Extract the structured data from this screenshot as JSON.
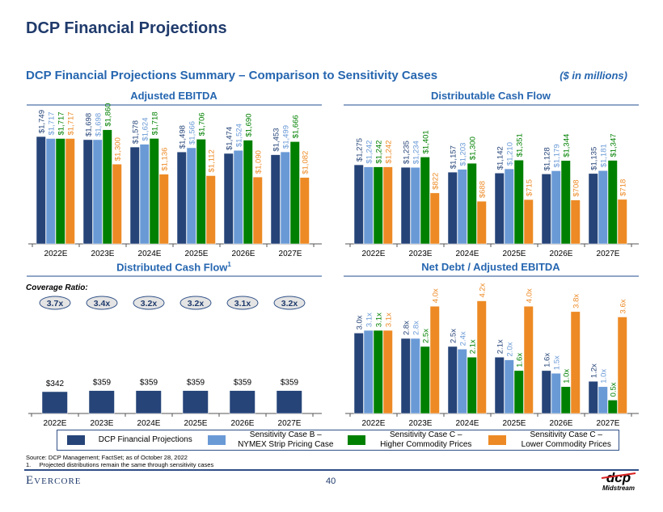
{
  "header": {
    "title": "DCP Financial Projections",
    "subtitle": "DCP Financial Projections Summary – Comparison to Sensitivity Cases",
    "units": "($ in millions)"
  },
  "colors": {
    "dcp": "#264478",
    "case_b": "#6A9AD6",
    "case_c_high": "#008000",
    "case_c_low": "#ED8A25"
  },
  "legend": [
    {
      "label": "DCP Financial Projections",
      "color": "#264478"
    },
    {
      "label": "Sensitivity Case B –\nNYMEX Strip Pricing Case",
      "color": "#6A9AD6"
    },
    {
      "label": "Sensitivity Case C –\nHigher Commodity Prices",
      "color": "#008000"
    },
    {
      "label": "Sensitivity Case C –\nLower Commodity Prices",
      "color": "#ED8A25"
    }
  ],
  "coverage": {
    "label": "Coverage Ratio:",
    "values": [
      "3.7x",
      "3.4x",
      "3.2x",
      "3.2x",
      "3.1x",
      "3.2x"
    ]
  },
  "chart_data": [
    {
      "type": "bar",
      "title": "Adjusted EBITDA",
      "categories": [
        "2022E",
        "2023E",
        "2024E",
        "2025E",
        "2026E",
        "2027E"
      ],
      "format": "dollar",
      "series": [
        {
          "name": "DCP Financial Projections",
          "values": [
            1749,
            1698,
            1578,
            1498,
            1474,
            1453
          ]
        },
        {
          "name": "Sensitivity Case B – NYMEX Strip Pricing Case",
          "values": [
            1717,
            1698,
            1624,
            1566,
            1524,
            1499
          ]
        },
        {
          "name": "Sensitivity Case C – Higher Commodity Prices",
          "values": [
            1717,
            1860,
            1718,
            1706,
            1690,
            1666
          ]
        },
        {
          "name": "Sensitivity Case C – Lower Commodity Prices",
          "values": [
            1717,
            1300,
            1136,
            1112,
            1090,
            1082
          ]
        }
      ]
    },
    {
      "type": "bar",
      "title": "Distributable Cash Flow",
      "categories": [
        "2022E",
        "2023E",
        "2024E",
        "2025E",
        "2026E",
        "2027E"
      ],
      "format": "dollar",
      "series": [
        {
          "name": "DCP Financial Projections",
          "values": [
            1275,
            1235,
            1157,
            1142,
            1128,
            1135
          ]
        },
        {
          "name": "Sensitivity Case B – NYMEX Strip Pricing Case",
          "values": [
            1242,
            1234,
            1203,
            1210,
            1179,
            1181
          ]
        },
        {
          "name": "Sensitivity Case C – Higher Commodity Prices",
          "values": [
            1242,
            1401,
            1300,
            1351,
            1344,
            1347
          ]
        },
        {
          "name": "Sensitivity Case C – Lower Commodity Prices",
          "values": [
            1242,
            822,
            688,
            715,
            708,
            718
          ]
        }
      ]
    },
    {
      "type": "bar",
      "title": "Distributed Cash Flow",
      "title_sup": "1",
      "categories": [
        "2022E",
        "2023E",
        "2024E",
        "2025E",
        "2026E",
        "2027E"
      ],
      "format": "dollar",
      "series": [
        {
          "name": "DCP Financial Projections",
          "values": [
            342,
            359,
            359,
            359,
            359,
            359
          ]
        }
      ]
    },
    {
      "type": "bar",
      "title": "Net Debt / Adjusted EBITDA",
      "categories": [
        "2022E",
        "2023E",
        "2024E",
        "2025E",
        "2026E",
        "2027E"
      ],
      "format": "ratio",
      "series": [
        {
          "name": "DCP Financial Projections",
          "values": [
            3.0,
            2.8,
            2.5,
            2.1,
            1.6,
            1.2
          ]
        },
        {
          "name": "Sensitivity Case B – NYMEX Strip Pricing Case",
          "values": [
            3.1,
            2.8,
            2.4,
            2.0,
            1.5,
            1.0
          ]
        },
        {
          "name": "Sensitivity Case C – Higher Commodity Prices",
          "values": [
            3.1,
            2.5,
            2.1,
            1.6,
            1.0,
            0.5
          ]
        },
        {
          "name": "Sensitivity Case C – Lower Commodity Prices",
          "values": [
            3.1,
            4.0,
            4.2,
            4.0,
            3.8,
            3.6
          ]
        }
      ]
    }
  ],
  "footer": {
    "source": "Source: DCP Management; FactSet; as of October 28, 2022",
    "note": "1.     Projected distributions remain the same through sensitivity cases",
    "brand": "Evercore",
    "page": "40",
    "logo_text": "dcp Midstream"
  }
}
